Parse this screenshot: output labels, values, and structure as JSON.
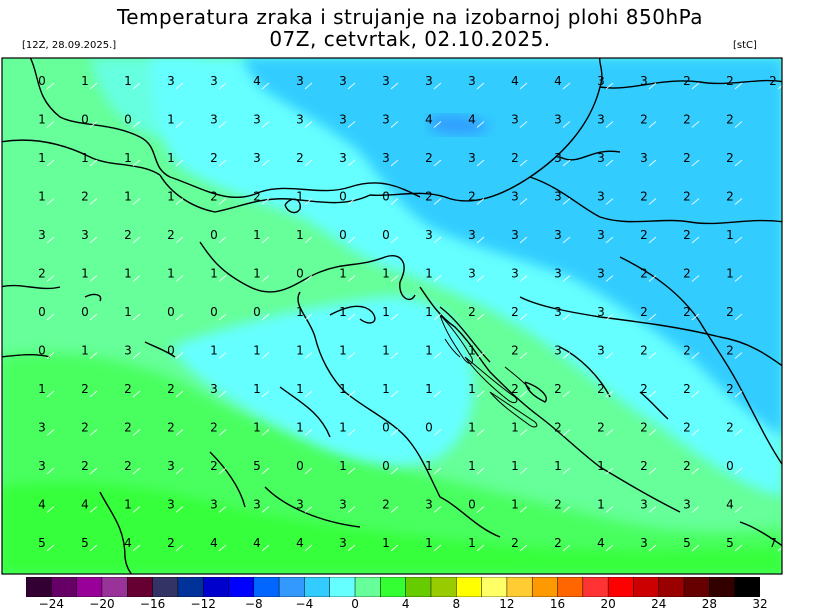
{
  "header": {
    "title_line1": "Temperatura zraka i strujanje na izobarnoj plohi 850hPa",
    "title_line2": "07Z, cetvrtak, 02.10.2025.",
    "run_label": "[12Z, 28.09.2025.]",
    "unit_label": "[stC]"
  },
  "colorbar": {
    "colors": [
      "#330033",
      "#660066",
      "#990099",
      "#993399",
      "#660033",
      "#333366",
      "#003399",
      "#0000cc",
      "#0000ff",
      "#0066ff",
      "#3399ff",
      "#33ccff",
      "#66ffff",
      "#66ff99",
      "#33ff33",
      "#66cc00",
      "#99cc00",
      "#ffff00",
      "#ffff66",
      "#ffcc33",
      "#ff9900",
      "#ff6600",
      "#ff3333",
      "#ff0000",
      "#cc0000",
      "#990000",
      "#660000",
      "#330000",
      "#000000"
    ],
    "tick_labels": [
      "−24",
      "−20",
      "−16",
      "−12",
      "−8",
      "−4",
      "0",
      "4",
      "8",
      "12",
      "16",
      "20",
      "24",
      "28",
      "32"
    ]
  },
  "map_grid": {
    "rows": [
      [
        "0",
        "1",
        "1",
        "3",
        "3",
        "4",
        "3",
        "3",
        "3",
        "3",
        "3",
        "4",
        "4",
        "3",
        "3",
        "2",
        "2",
        "2"
      ],
      [
        "1",
        "0",
        "0",
        "1",
        "3",
        "3",
        "3",
        "3",
        "3",
        "4",
        "4",
        "3",
        "3",
        "3",
        "2",
        "2",
        "2",
        ""
      ],
      [
        "1",
        "1",
        "1",
        "1",
        "2",
        "3",
        "2",
        "3",
        "3",
        "2",
        "3",
        "2",
        "3",
        "3",
        "3",
        "2",
        "2",
        ""
      ],
      [
        "1",
        "2",
        "1",
        "1",
        "2",
        "2",
        "1",
        "0",
        "0",
        "2",
        "2",
        "3",
        "3",
        "3",
        "2",
        "2",
        "2",
        ""
      ],
      [
        "3",
        "3",
        "2",
        "2",
        "0",
        "1",
        "1",
        "0",
        "0",
        "3",
        "3",
        "3",
        "3",
        "3",
        "2",
        "2",
        "1",
        ""
      ],
      [
        "2",
        "1",
        "1",
        "1",
        "1",
        "1",
        "0",
        "1",
        "1",
        "1",
        "3",
        "3",
        "3",
        "3",
        "2",
        "2",
        "1",
        ""
      ],
      [
        "0",
        "0",
        "1",
        "0",
        "0",
        "0",
        "1",
        "1",
        "1",
        "1",
        "2",
        "2",
        "3",
        "3",
        "2",
        "2",
        "2",
        ""
      ],
      [
        "0",
        "1",
        "3",
        "0",
        "1",
        "1",
        "1",
        "1",
        "1",
        "1",
        "1",
        "2",
        "3",
        "3",
        "2",
        "2",
        "2",
        ""
      ],
      [
        "1",
        "2",
        "2",
        "2",
        "3",
        "1",
        "1",
        "1",
        "1",
        "1",
        "1",
        "2",
        "2",
        "2",
        "2",
        "2",
        "2",
        ""
      ],
      [
        "3",
        "2",
        "2",
        "2",
        "2",
        "1",
        "1",
        "1",
        "0",
        "0",
        "1",
        "1",
        "2",
        "2",
        "2",
        "2",
        "2",
        ""
      ],
      [
        "3",
        "2",
        "2",
        "3",
        "2",
        "5",
        "0",
        "1",
        "0",
        "1",
        "1",
        "1",
        "1",
        "1",
        "2",
        "2",
        "0",
        ""
      ],
      [
        "4",
        "4",
        "1",
        "3",
        "3",
        "3",
        "3",
        "3",
        "2",
        "3",
        "0",
        "1",
        "2",
        "1",
        "3",
        "3",
        "4",
        ""
      ],
      [
        "5",
        "5",
        "4",
        "2",
        "4",
        "4",
        "4",
        "3",
        "1",
        "1",
        "1",
        "2",
        "2",
        "4",
        "3",
        "5",
        "5",
        "7"
      ]
    ]
  }
}
